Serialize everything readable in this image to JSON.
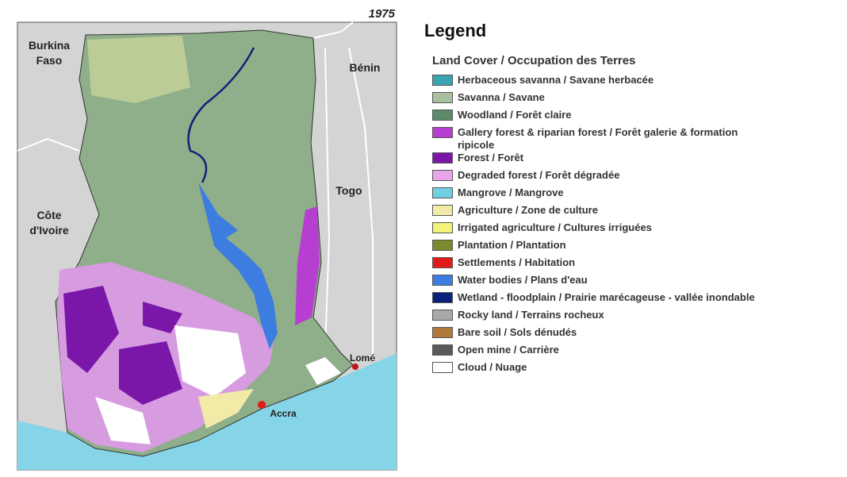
{
  "map": {
    "year": "1975",
    "country_labels": [
      [
        "Burkina",
        "Faso"
      ],
      [
        "Bénin"
      ],
      [
        "Togo"
      ],
      [
        "Côte",
        "d'Ivoire"
      ]
    ],
    "city_labels": [
      "Lomé",
      "Accra"
    ]
  },
  "legend": {
    "title": "Legend",
    "subtitle": "Land Cover / Occupation des Terres",
    "items": [
      {
        "label": "Herbaceous savanna / Savane herbacée",
        "color": "#3aa3b0"
      },
      {
        "label": "Savanna / Savane",
        "color": "#a9c09e"
      },
      {
        "label": "Woodland / Forêt claire",
        "color": "#5e8a6c"
      },
      {
        "label": "Gallery forest & riparian forest / Forêt galerie & formation ripicole",
        "color": "#b63fd1"
      },
      {
        "label": "Forest / Forêt",
        "color": "#7a17a8"
      },
      {
        "label": "Degraded forest / Forêt dégradée",
        "color": "#e8a6e8"
      },
      {
        "label": "Mangrove / Mangrove",
        "color": "#6fd0e3"
      },
      {
        "label": "Agriculture / Zone de culture",
        "color": "#f2eba8"
      },
      {
        "label": "Irrigated agriculture / Cultures irriguées",
        "color": "#f3f37a"
      },
      {
        "label": "Plantation / Plantation",
        "color": "#7d8a2e"
      },
      {
        "label": "Settlements / Habitation",
        "color": "#e31a1c"
      },
      {
        "label": "Water bodies / Plans d'eau",
        "color": "#3e7de0"
      },
      {
        "label": "Wetland - floodplain / Prairie marécageuse - vallée inondable",
        "color": "#0b237a"
      },
      {
        "label": "Rocky land / Terrains rocheux",
        "color": "#a9a9a9"
      },
      {
        "label": "Bare soil / Sols dénudés",
        "color": "#b07a3a"
      },
      {
        "label": "Open mine / Carrière",
        "color": "#5a5a5a"
      },
      {
        "label": "Cloud / Nuage",
        "color": "#ffffff"
      }
    ]
  }
}
